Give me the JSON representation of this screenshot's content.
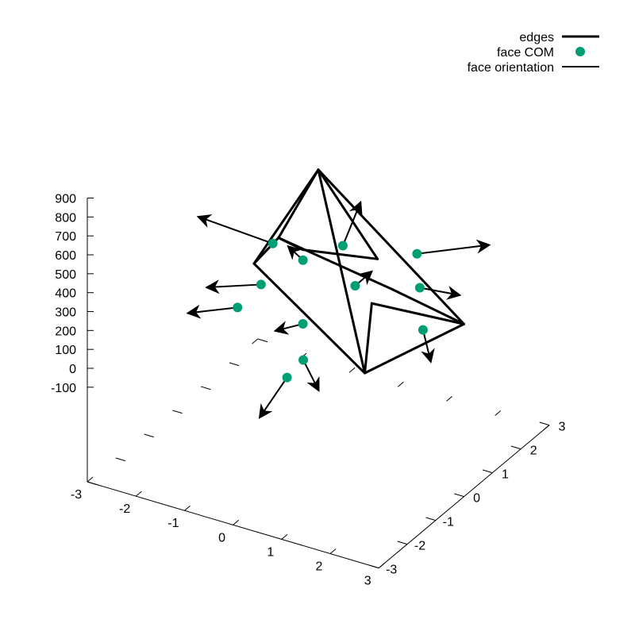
{
  "chart_data": {
    "type": "3d-scatter-with-vectors",
    "legend": {
      "placement": "top-right",
      "entries": [
        {
          "label": "edges",
          "style": "thick-line"
        },
        {
          "label": "face COM",
          "style": "point"
        },
        {
          "label": "face orientation",
          "style": "thin-line"
        }
      ]
    },
    "x_ticks": [
      "-3",
      "-2",
      "-1",
      "0",
      "1",
      "2",
      "3"
    ],
    "y_ticks": [
      "-3",
      "-2",
      "-1",
      "0",
      "1",
      "2",
      "3"
    ],
    "z_ticks": [
      "-100",
      "0",
      "100",
      "200",
      "300",
      "400",
      "500",
      "600",
      "700",
      "800",
      "900"
    ],
    "xlim": [
      -3,
      3
    ],
    "ylim": [
      -3,
      3
    ],
    "zlim": [
      -100,
      900
    ],
    "colors": {
      "com": "#009e73",
      "edges": "#000000",
      "axes": "#000000"
    },
    "vertices": [
      {
        "id": "apex",
        "x": 0.0,
        "y": 0.0,
        "z": 900
      },
      {
        "id": "b1",
        "x": -1.85,
        "y": 0.9,
        "z": 150
      },
      {
        "id": "b2",
        "x": 1.6,
        "y": -1.1,
        "z": 85
      },
      {
        "id": "b3",
        "x": 2.15,
        "y": 1.45,
        "z": 65
      },
      {
        "id": "b4",
        "x": 0.05,
        "y": 2.0,
        "z": 180
      },
      {
        "id": "b5",
        "x": -1.55,
        "y": 1.25,
        "z": 265
      },
      {
        "id": "c1",
        "x": -1.05,
        "y": 1.25,
        "z": 240
      },
      {
        "id": "c2",
        "x": 0.75,
        "y": 0.6,
        "z": 175
      },
      {
        "id": "c3",
        "x": 0.9,
        "y": 1.05,
        "z": 205
      }
    ],
    "edges": [
      [
        "apex",
        "b1"
      ],
      [
        "apex",
        "b2"
      ],
      [
        "apex",
        "b3"
      ],
      [
        "apex",
        "b4"
      ],
      [
        "apex",
        "b5"
      ],
      [
        "b1",
        "b2"
      ],
      [
        "b2",
        "b3"
      ],
      [
        "b5",
        "b1"
      ],
      [
        "b3",
        "c2"
      ],
      [
        "c2",
        "b2"
      ],
      [
        "b5",
        "c1"
      ],
      [
        "c1",
        "b4"
      ],
      [
        "b5",
        "c3"
      ],
      [
        "c3",
        "b3"
      ]
    ],
    "face_com": [
      {
        "x": -0.55,
        "y": 0.4,
        "z": 330
      },
      {
        "x": -0.05,
        "y": 0.95,
        "z": 375
      },
      {
        "x": 0.95,
        "y": 1.85,
        "z": 295
      },
      {
        "x": -1.55,
        "y": 1.05,
        "z": 260
      },
      {
        "x": 0.35,
        "y": 0.7,
        "z": 225
      },
      {
        "x": 1.3,
        "y": 1.35,
        "z": 205
      },
      {
        "x": -1.5,
        "y": 0.55,
        "z": 110
      },
      {
        "x": -0.2,
        "y": -0.2,
        "z": 95
      },
      {
        "x": 1.6,
        "y": 0.95,
        "z": 55
      },
      {
        "x": -1.75,
        "y": 0.15,
        "z": 20
      },
      {
        "x": 0.1,
        "y": -0.7,
        "z": -10
      },
      {
        "x": 0.0,
        "y": -1.1,
        "z": -60
      }
    ],
    "face_orientation": [
      {
        "x0": -0.55,
        "y0": 0.4,
        "z0": 330,
        "x1": -0.45,
        "y1": -0.3,
        "z1": 500
      },
      {
        "x0": -0.05,
        "y0": 0.95,
        "z0": 375,
        "x1": 0.2,
        "y1": 1.15,
        "z1": 600
      },
      {
        "x0": 0.95,
        "y0": 1.85,
        "z0": 295,
        "x1": 2.15,
        "y1": 2.35,
        "z1": 370
      },
      {
        "x0": -1.55,
        "y0": 1.05,
        "z0": 260,
        "x1": -2.8,
        "y1": 0.55,
        "z1": 370
      },
      {
        "x0": 0.35,
        "y0": 0.7,
        "z0": 225,
        "x1": 0.55,
        "y1": 0.95,
        "z1": 285
      },
      {
        "x0": 1.3,
        "y0": 1.35,
        "z0": 205,
        "x1": 2.1,
        "y1": 1.4,
        "z1": 220
      },
      {
        "x0": -1.5,
        "y0": 0.55,
        "z0": 110,
        "x1": -2.45,
        "y1": 0.25,
        "z1": 60
      },
      {
        "x0": -0.2,
        "y0": -0.2,
        "z0": 95,
        "x1": -0.6,
        "y1": -0.5,
        "z1": 65
      },
      {
        "x0": 1.6,
        "y0": 0.95,
        "z0": 55,
        "x1": 2.2,
        "y1": 0.2,
        "z1": 25
      },
      {
        "x0": -1.75,
        "y0": 0.15,
        "z0": 20,
        "x1": -2.75,
        "y1": 0.1,
        "z1": -80
      },
      {
        "x0": 0.1,
        "y0": -0.7,
        "z0": -10,
        "x1": 0.45,
        "y1": -0.75,
        "z1": -140
      },
      {
        "x0": 0.0,
        "y0": -1.1,
        "z0": -60,
        "x1": -0.1,
        "y1": -1.9,
        "z1": -180
      }
    ]
  }
}
